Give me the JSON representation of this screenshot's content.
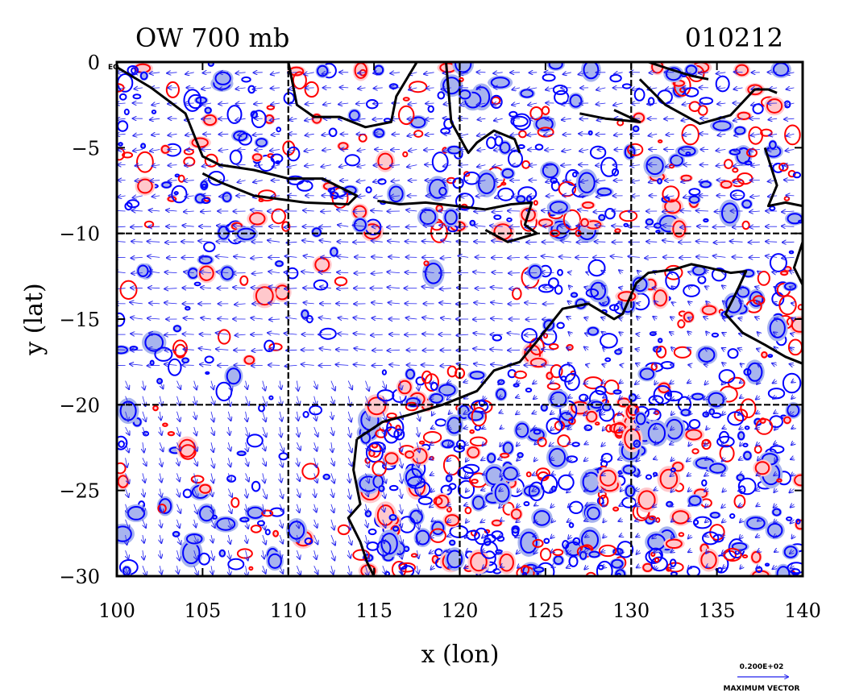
{
  "chart_data": {
    "type": "contour_vector_map",
    "title_left": "OW 700 mb",
    "title_right": "010212",
    "xlabel": "x (lon)",
    "ylabel": "y (lat)",
    "xlim": [
      100,
      140
    ],
    "ylim": [
      -30,
      0
    ],
    "x_ticks": [
      100,
      105,
      110,
      115,
      120,
      125,
      130,
      135,
      140
    ],
    "y_ticks": [
      0,
      -5,
      -10,
      -15,
      -20,
      -25,
      -30
    ],
    "x_tick_labels": [
      "100",
      "105",
      "110",
      "115",
      "120",
      "125",
      "130",
      "135",
      "140"
    ],
    "y_tick_labels": [
      "0",
      "−5",
      "−10",
      "−15",
      "−20",
      "−25",
      "−30"
    ],
    "y_top_suffix": "EQ",
    "grid_lon": [
      110,
      120,
      130
    ],
    "grid_lat": [
      -10,
      -20
    ],
    "grid": true,
    "colors": {
      "positive_contour": "#ff0000",
      "positive_fill": "#ffc8cc",
      "negative_contour": "#0000ff",
      "negative_fill": "#a8b4ee",
      "coastline": "#000000",
      "vector": "#2222ee"
    },
    "vector_legend": {
      "magnitude_label": "0.200E+02",
      "label": "MAXIMUM VECTOR"
    }
  }
}
